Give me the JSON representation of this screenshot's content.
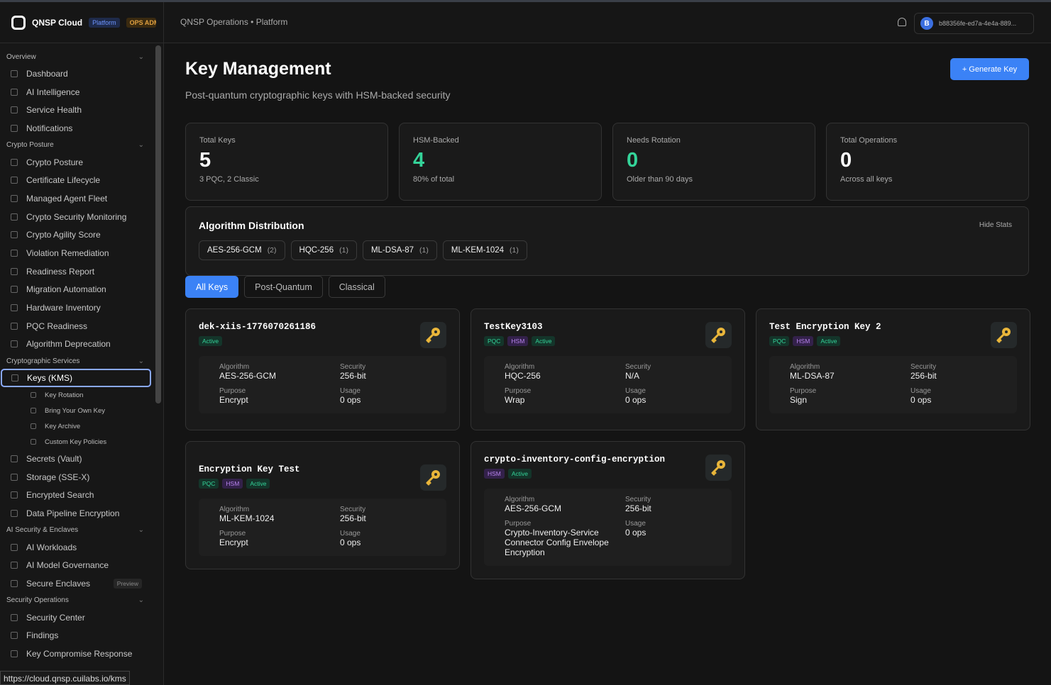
{
  "topbar": {
    "brand": "QNSP Cloud",
    "badge": "Platform",
    "role": "OPS ADMIN",
    "breadcrumb": [
      "QNSP Operations",
      "Platform"
    ],
    "avatar": "B",
    "user": "b88356fe-ed7a-4e4a-889..."
  },
  "sidebar": {
    "sections": [
      {
        "title": "Overview",
        "items": [
          {
            "label": "Dashboard"
          },
          {
            "label": "AI Intelligence"
          },
          {
            "label": "Service Health"
          },
          {
            "label": "Notifications"
          }
        ]
      },
      {
        "title": "Crypto Posture",
        "items": [
          {
            "label": "Crypto Posture"
          },
          {
            "label": "Certificate Lifecycle"
          },
          {
            "label": "Managed Agent Fleet"
          },
          {
            "label": "Crypto Security Monitoring"
          },
          {
            "label": "Crypto Agility Score"
          },
          {
            "label": "Violation Remediation"
          },
          {
            "label": "Readiness Report"
          },
          {
            "label": "Migration Automation"
          },
          {
            "label": "Hardware Inventory"
          },
          {
            "label": "PQC Readiness"
          },
          {
            "label": "Algorithm Deprecation"
          }
        ]
      },
      {
        "title": "Cryptographic Services",
        "items": [
          {
            "label": "Keys (KMS)",
            "children": [
              "Key Rotation",
              "Bring Your Own Key",
              "Key Archive",
              "Custom Key Policies"
            ]
          },
          {
            "label": "Secrets (Vault)"
          },
          {
            "label": "Storage (SSE-X)"
          },
          {
            "label": "Encrypted Search"
          },
          {
            "label": "Data Pipeline Encryption"
          }
        ]
      },
      {
        "title": "AI Security & Enclaves",
        "items": [
          {
            "label": "AI Workloads"
          },
          {
            "label": "AI Model Governance"
          },
          {
            "label": "Secure Enclaves",
            "badge": "Preview"
          }
        ]
      },
      {
        "title": "Security Operations",
        "items": [
          {
            "label": "Security Center"
          },
          {
            "label": "Findings"
          },
          {
            "label": "Key Compromise Response"
          }
        ]
      }
    ],
    "status_url": "https://cloud.qnsp.cuilabs.io/kms"
  },
  "header": {
    "title": "Key Management",
    "subtitle": "Post-quantum cryptographic keys with HSM-backed security",
    "button": "+ Generate Key"
  },
  "stats": [
    {
      "label": "Total Keys",
      "value": "5",
      "note": "3 PQC, 2 Classic"
    },
    {
      "label": "HSM-Backed",
      "value": "4",
      "note": "80% of total"
    },
    {
      "label": "Needs Rotation",
      "value": "0",
      "note": "Older than 90 days"
    },
    {
      "label": "Total Operations",
      "value": "0",
      "note": "Across all keys"
    }
  ],
  "distribution": {
    "title": "Algorithm Distribution",
    "toggle": "Hide Stats",
    "chips": [
      {
        "name": "AES-256-GCM",
        "count": "(2)"
      },
      {
        "name": "HQC-256",
        "count": "(1)"
      },
      {
        "name": "ML-DSA-87",
        "count": "(1)"
      },
      {
        "name": "ML-KEM-1024",
        "count": "(1)"
      }
    ]
  },
  "tabs": [
    "All Keys",
    "Post-Quantum",
    "Classical"
  ],
  "field_labels": {
    "algorithm": "Algorithm",
    "security": "Security",
    "purpose": "Purpose",
    "usage": "Usage"
  },
  "keys": [
    {
      "name": "dek-xiis-1776070261186",
      "tags": [
        "Active"
      ],
      "algorithm": "AES-256-GCM",
      "security": "256-bit",
      "purpose": "Encrypt",
      "usage": "0 ops"
    },
    {
      "name": "TestKey3103",
      "tags": [
        "PQC",
        "HSM",
        "Active"
      ],
      "algorithm": "HQC-256",
      "security": "N/A",
      "purpose": "Wrap",
      "usage": "0 ops"
    },
    {
      "name": "Test Encryption Key 2",
      "tags": [
        "PQC",
        "HSM",
        "Active"
      ],
      "algorithm": "ML-DSA-87",
      "security": "256-bit",
      "purpose": "Sign",
      "usage": "0 ops"
    },
    {
      "name": "Encryption Key Test",
      "tags": [
        "PQC",
        "HSM",
        "Active"
      ],
      "algorithm": "ML-KEM-1024",
      "security": "256-bit",
      "purpose": "Encrypt",
      "usage": "0 ops"
    },
    {
      "name": "crypto-inventory-config-encryption",
      "tags": [
        "HSM",
        "Active"
      ],
      "algorithm": "AES-256-GCM",
      "security": "256-bit",
      "purpose": "Crypto-Inventory-Service Connector Config Envelope Encryption",
      "usage": "0 ops"
    }
  ]
}
